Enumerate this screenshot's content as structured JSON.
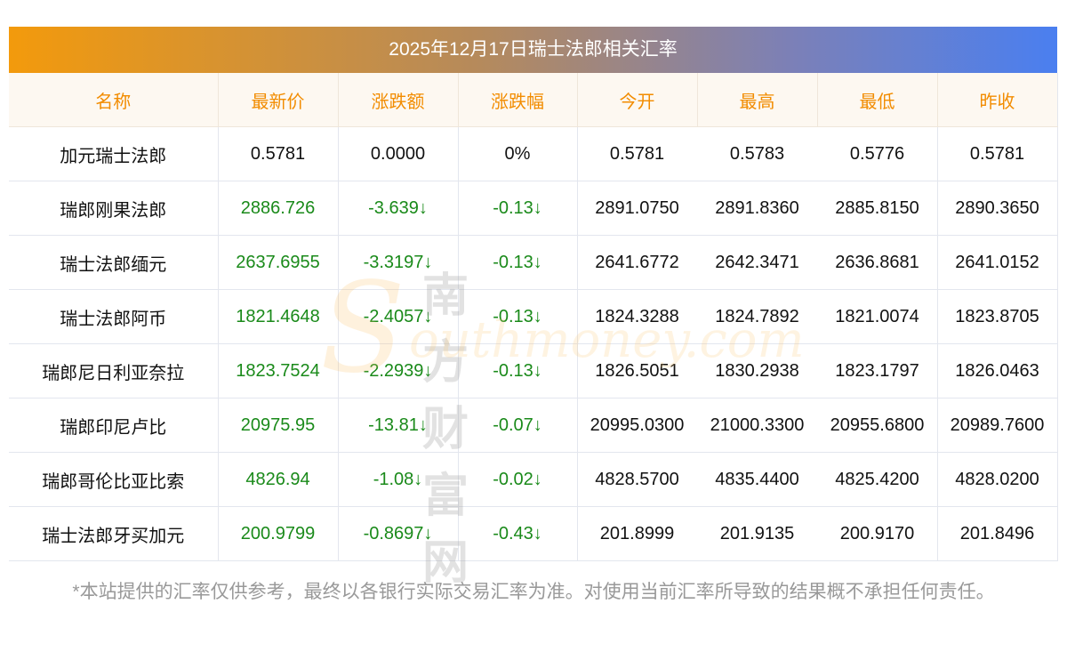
{
  "title": "2025年12月17日瑞士法郎相关汇率",
  "columns": [
    "名称",
    "最新价",
    "涨跌额",
    "涨跌幅",
    "今开",
    "最高",
    "最低",
    "昨收"
  ],
  "rows": [
    [
      "加元瑞士法郎",
      "0.5781",
      "0.0000",
      "0%",
      "0.5781",
      "0.5783",
      "0.5776",
      "0.5781"
    ],
    [
      "瑞郎刚果法郎",
      "2886.726",
      "-3.639↓",
      "-0.13↓",
      "2891.0750",
      "2891.8360",
      "2885.8150",
      "2890.3650"
    ],
    [
      "瑞士法郎缅元",
      "2637.6955",
      "-3.3197↓",
      "-0.13↓",
      "2641.6772",
      "2642.3471",
      "2636.8681",
      "2641.0152"
    ],
    [
      "瑞士法郎阿币",
      "1821.4648",
      "-2.4057↓",
      "-0.13↓",
      "1824.3288",
      "1824.7892",
      "1821.0074",
      "1823.8705"
    ],
    [
      "瑞郎尼日利亚奈拉",
      "1823.7524",
      "-2.2939↓",
      "-0.13↓",
      "1826.5051",
      "1830.2938",
      "1823.1797",
      "1826.0463"
    ],
    [
      "瑞郎印尼卢比",
      "20975.95",
      "-13.81↓",
      "-0.07↓",
      "20995.0300",
      "21000.3300",
      "20955.6800",
      "20989.7600"
    ],
    [
      "瑞郎哥伦比亚比索",
      "4826.94",
      "-1.08↓",
      "-0.02↓",
      "4828.5700",
      "4835.4400",
      "4825.4200",
      "4828.0200"
    ],
    [
      "瑞士法郎牙买加元",
      "200.9799",
      "-0.8697↓",
      "-0.43↓",
      "201.8999",
      "201.9135",
      "200.9170",
      "201.8496"
    ]
  ],
  "green_rows": [
    1,
    2,
    3,
    4,
    5,
    6,
    7
  ],
  "watermark": {
    "cn": "南方财富网",
    "en": "southmoney.com"
  },
  "note": "*本站提供的汇率仅供参考，最终以各银行实际交易汇率为准。对使用当前汇率所导致的结果概不承担任何责任。"
}
